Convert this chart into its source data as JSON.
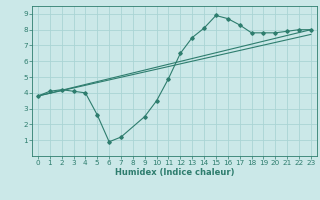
{
  "bg_color": "#cbe8e8",
  "grid_color": "#aad4d4",
  "line_color": "#2e7d6e",
  "xlabel": "Humidex (Indice chaleur)",
  "xlim": [
    -0.5,
    23.5
  ],
  "ylim": [
    0,
    9.5
  ],
  "xticks": [
    0,
    1,
    2,
    3,
    4,
    5,
    6,
    7,
    8,
    9,
    10,
    11,
    12,
    13,
    14,
    15,
    16,
    17,
    18,
    19,
    20,
    21,
    22,
    23
  ],
  "yticks": [
    1,
    2,
    3,
    4,
    5,
    6,
    7,
    8,
    9
  ],
  "line1_x": [
    0,
    1,
    2,
    3,
    4,
    5,
    6,
    7,
    9,
    10,
    11,
    12,
    13,
    14,
    15,
    16,
    17,
    18,
    19,
    20,
    21,
    22,
    23
  ],
  "line1_y": [
    3.8,
    4.1,
    4.2,
    4.1,
    4.0,
    2.6,
    0.9,
    1.2,
    2.5,
    3.5,
    4.9,
    6.5,
    7.5,
    8.1,
    8.9,
    8.7,
    8.3,
    7.8,
    7.8,
    7.8,
    7.9,
    8.0,
    8.0
  ],
  "line2_x": [
    0,
    23
  ],
  "line2_y": [
    3.8,
    8.0
  ],
  "line3_x": [
    0,
    23
  ],
  "line3_y": [
    3.8,
    7.7
  ],
  "tick_fontsize": 5.2,
  "xlabel_fontsize": 6.0,
  "lw": 0.8,
  "ms": 1.8
}
